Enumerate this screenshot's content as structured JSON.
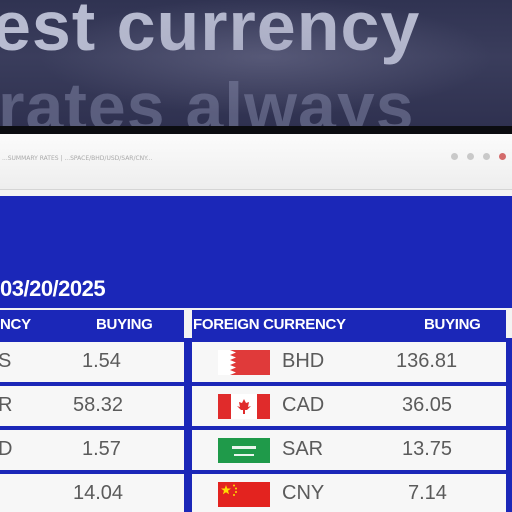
{
  "banner": {
    "line1": "est currency",
    "line2": "rates always"
  },
  "browser": {
    "url": "...SUMMARY RATES | ...SPACE/BHD/USD/SAR/CNY..."
  },
  "board": {
    "date": "03/20/2025",
    "left_headers": {
      "currency": "NCY",
      "buying": "BUYING"
    },
    "right_headers": {
      "currency": "FOREIGN CURRENCY",
      "buying": "BUYING"
    },
    "left_rows": [
      {
        "code": "S",
        "buying": "1.54"
      },
      {
        "code": "R",
        "buying": "58.32"
      },
      {
        "code": "D",
        "buying": "1.57"
      },
      {
        "code": "",
        "buying": "14.04"
      }
    ],
    "right_rows": [
      {
        "flag": "bahrain-flag-icon",
        "code": "BHD",
        "buying": "136.81"
      },
      {
        "flag": "canada-flag-icon",
        "code": "CAD",
        "buying": "36.05"
      },
      {
        "flag": "saudi-flag-icon",
        "code": "SAR",
        "buying": "13.75"
      },
      {
        "flag": "china-flag-icon",
        "code": "CNY",
        "buying": "7.14"
      }
    ]
  },
  "colors": {
    "brand_blue": "#1b27b8",
    "row_background": "#f7f7f7",
    "text_gray": "#5b5b5b"
  }
}
